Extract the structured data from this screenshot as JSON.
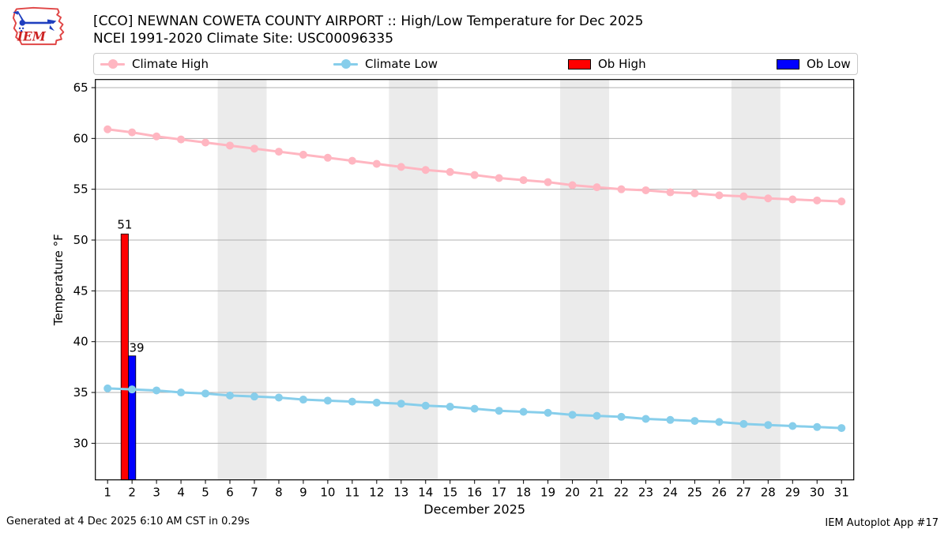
{
  "header": {
    "title": "[CCO] NEWNAN COWETA COUNTY AIRPORT :: High/Low Temperature for Dec 2025",
    "subtitle": "NCEI 1991-2020 Climate Site: USC00096335",
    "logo_text": "IEM"
  },
  "legend": {
    "items": [
      {
        "label": "Climate High",
        "type": "line",
        "color": "#ffb6c1"
      },
      {
        "label": "Climate Low",
        "type": "line",
        "color": "#87ceeb"
      },
      {
        "label": "Ob High",
        "type": "patch",
        "color": "#ff0000"
      },
      {
        "label": "Ob Low",
        "type": "patch",
        "color": "#0000ff"
      }
    ]
  },
  "footer": {
    "left": "Generated at 4 Dec 2025 6:10 AM CST in 0.29s",
    "right": "IEM Autoplot App #17"
  },
  "chart_data": {
    "type": "line",
    "title": "[CCO] NEWNAN COWETA COUNTY AIRPORT :: High/Low Temperature for Dec 2025",
    "subtitle": "NCEI 1991-2020 Climate Site: USC00096335",
    "xlabel": "December 2025",
    "ylabel": "Temperature °F",
    "x": [
      1,
      2,
      3,
      4,
      5,
      6,
      7,
      8,
      9,
      10,
      11,
      12,
      13,
      14,
      15,
      16,
      17,
      18,
      19,
      20,
      21,
      22,
      23,
      24,
      25,
      26,
      27,
      28,
      29,
      30,
      31
    ],
    "series": [
      {
        "name": "Climate High",
        "type": "line",
        "color": "#ffb6c1",
        "values": [
          60.9,
          60.6,
          60.2,
          59.9,
          59.6,
          59.3,
          59.0,
          58.7,
          58.4,
          58.1,
          57.8,
          57.5,
          57.2,
          56.9,
          56.7,
          56.4,
          56.1,
          55.9,
          55.7,
          55.4,
          55.2,
          55.0,
          54.9,
          54.7,
          54.6,
          54.4,
          54.3,
          54.1,
          54.0,
          53.9,
          53.8
        ]
      },
      {
        "name": "Climate Low",
        "type": "line",
        "color": "#87ceeb",
        "values": [
          35.4,
          35.3,
          35.2,
          35.0,
          34.9,
          34.7,
          34.6,
          34.5,
          34.3,
          34.2,
          34.1,
          34.0,
          33.9,
          33.7,
          33.6,
          33.4,
          33.2,
          33.1,
          33.0,
          32.8,
          32.7,
          32.6,
          32.4,
          32.3,
          32.2,
          32.1,
          31.9,
          31.8,
          31.7,
          31.6,
          31.5
        ]
      },
      {
        "name": "Ob High",
        "type": "bar",
        "color": "#ff0000",
        "points": [
          {
            "x": 2,
            "value": 51,
            "plotted_top": 50.6,
            "label": "51",
            "label_align": "center"
          }
        ]
      },
      {
        "name": "Ob Low",
        "type": "bar",
        "color": "#0000ff",
        "points": [
          {
            "x": 2,
            "value": 39,
            "plotted_top": 38.6,
            "label": "39",
            "label_align": "left"
          }
        ]
      }
    ],
    "xlim": [
      0.5,
      31.5
    ],
    "ylim": [
      26.4,
      65.8
    ],
    "yticks": [
      30,
      35,
      40,
      45,
      50,
      55,
      60,
      65
    ],
    "grid": "horizontal",
    "gridline_color": "#b2b2b2",
    "weekend_bands": [
      [
        5.5,
        7.5
      ],
      [
        12.5,
        14.5
      ],
      [
        19.5,
        21.5
      ],
      [
        26.5,
        28.5
      ]
    ],
    "band_color": "#ebebeb",
    "legend_position": "top"
  }
}
